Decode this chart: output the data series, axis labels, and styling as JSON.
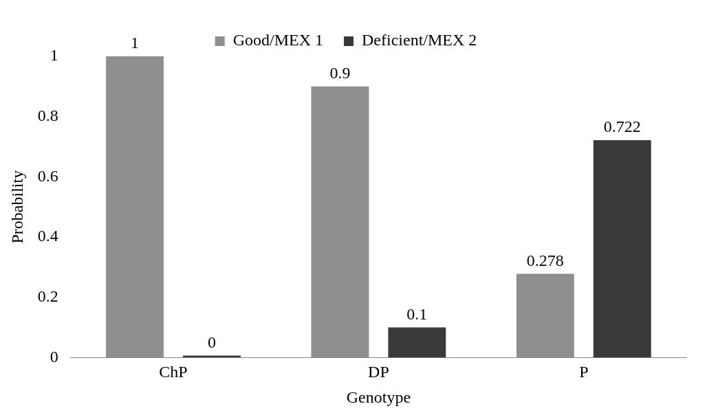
{
  "chart_data": {
    "type": "bar",
    "xlabel": "Genotype",
    "ylabel": "Probability",
    "categories": [
      "ChP",
      "DP",
      "P"
    ],
    "series": [
      {
        "name": "Good/MEX 1",
        "color": "#8f8f8f",
        "values": [
          1,
          0.9,
          0.278
        ]
      },
      {
        "name": "Deficient/MEX 2",
        "color": "#3a3a3a",
        "values": [
          0,
          0.1,
          0.722
        ]
      }
    ],
    "ylim": [
      0,
      1
    ],
    "yticks": [
      0,
      0.2,
      0.4,
      0.6,
      0.8,
      1
    ],
    "grid": false,
    "legend": "top",
    "data_labels": true
  }
}
